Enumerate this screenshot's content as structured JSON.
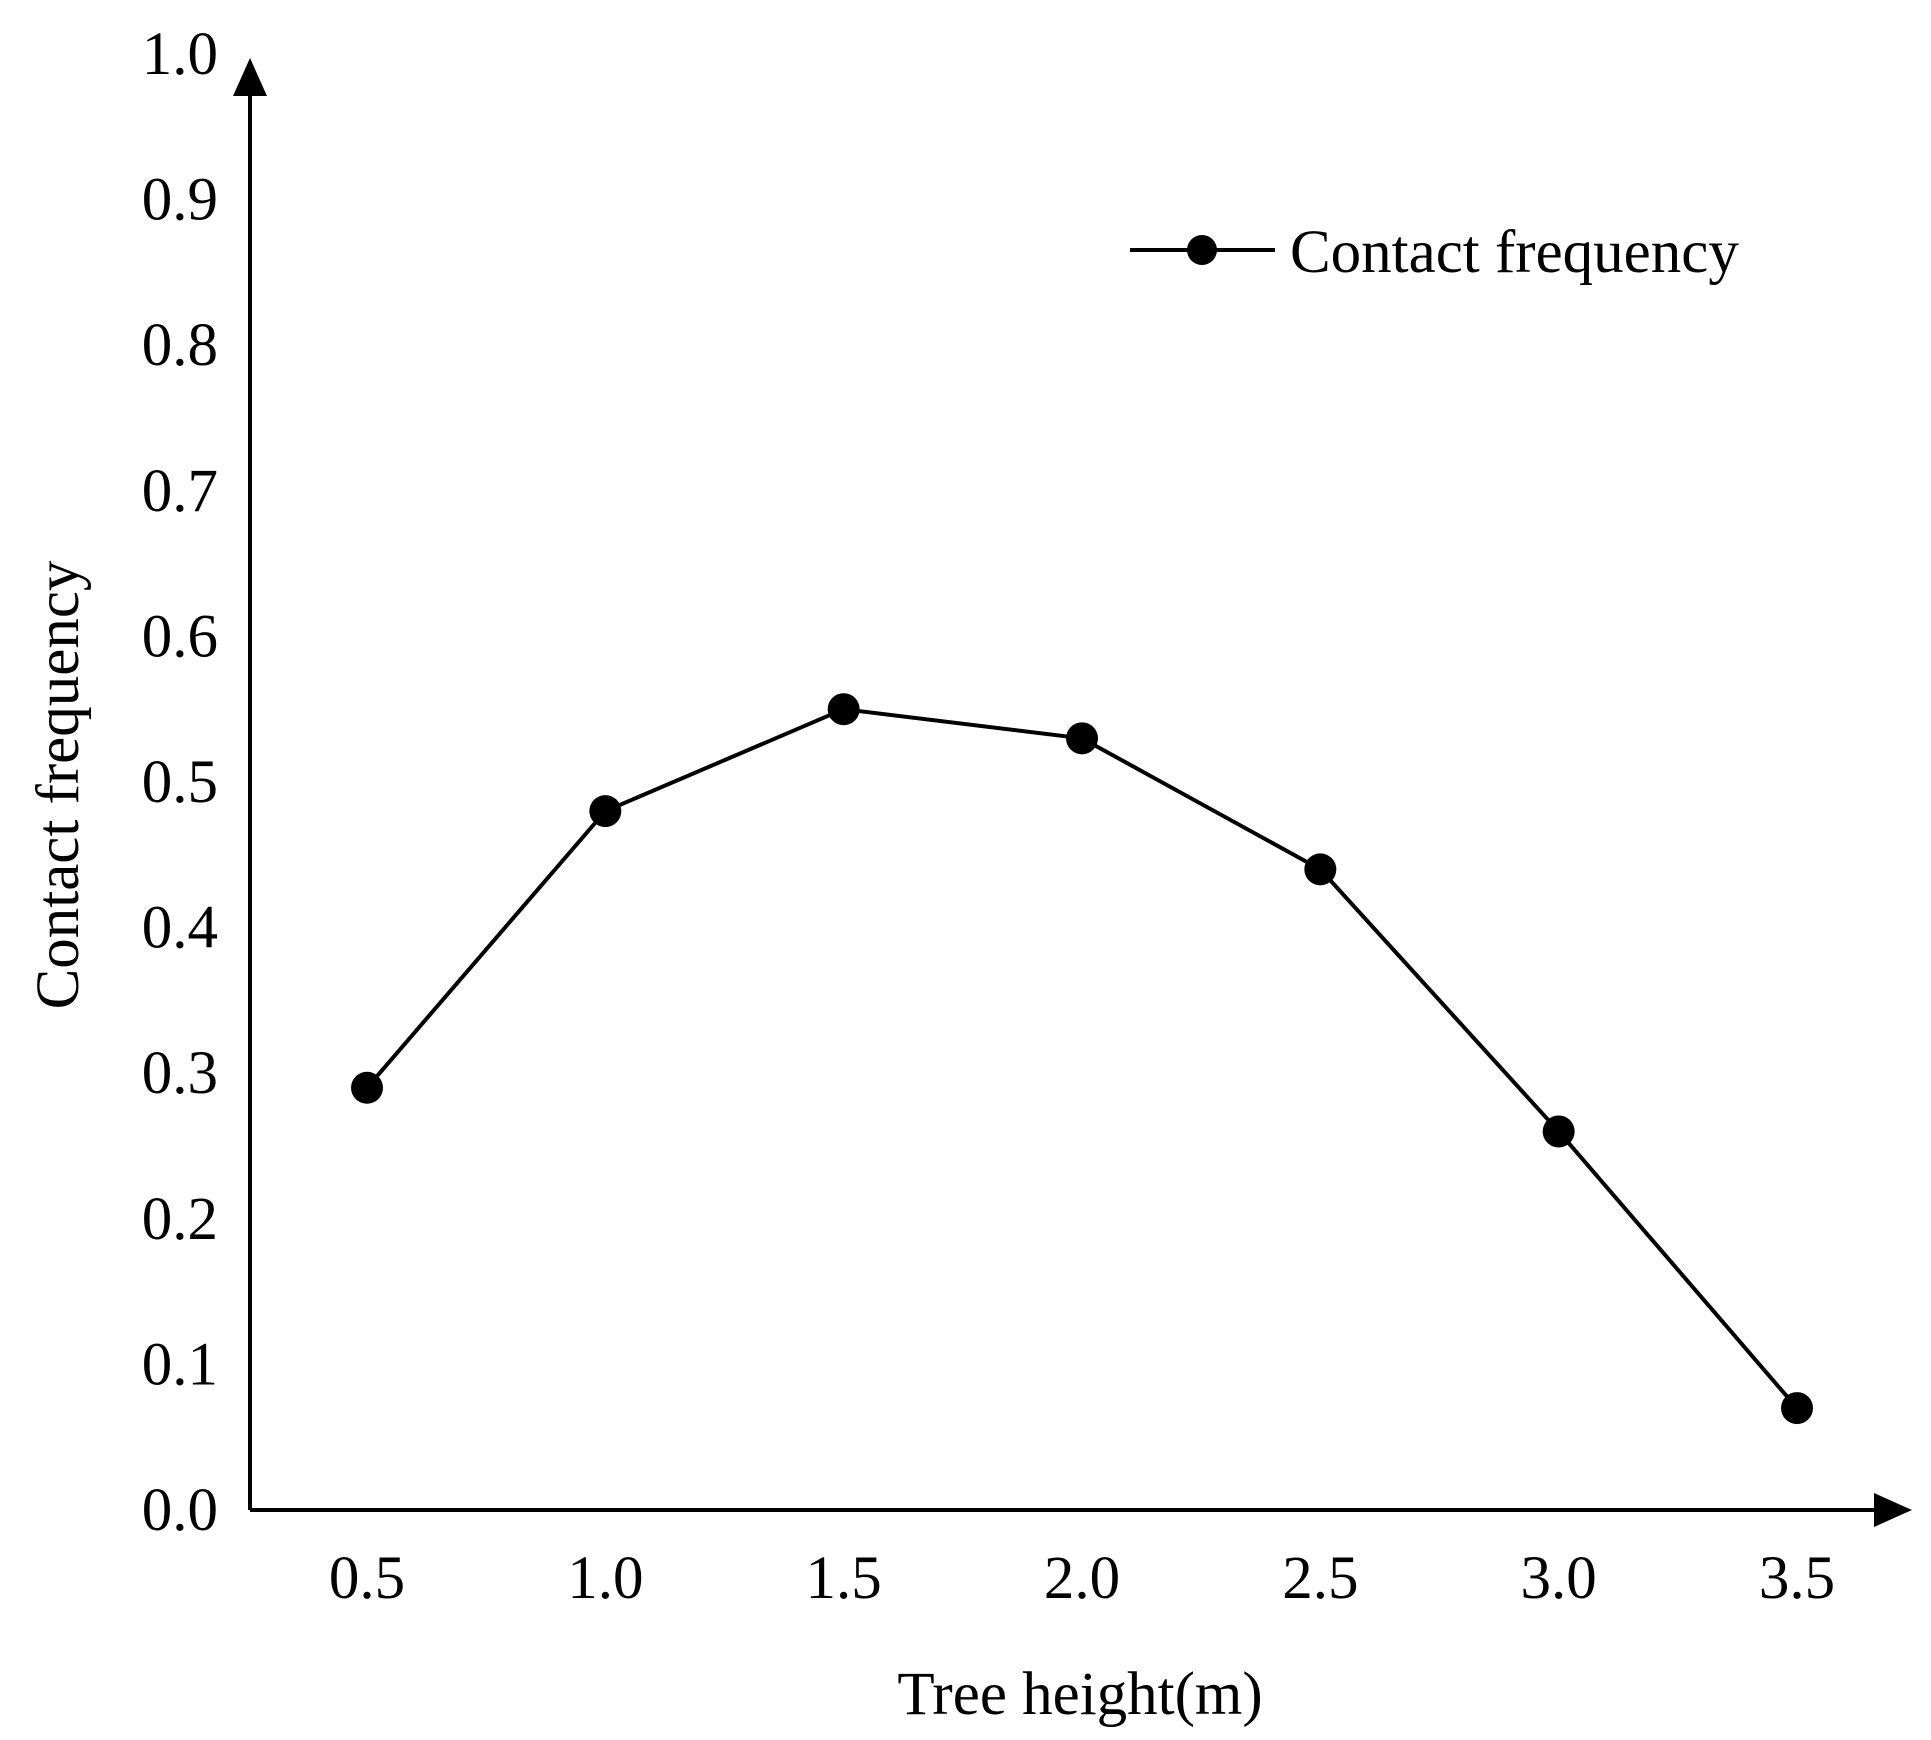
{
  "chart_data": {
    "type": "line",
    "title": "",
    "xlabel": "Tree height(m)",
    "ylabel": "Contact frequency",
    "x": [
      0.5,
      1.0,
      1.5,
      2.0,
      2.5,
      3.0,
      3.5
    ],
    "x_tick_labels": [
      "0.5",
      "1.0",
      "1.5",
      "2.0",
      "2.5",
      "3.0",
      "3.5"
    ],
    "y_tick_labels": [
      "0.0",
      "0.1",
      "0.2",
      "0.3",
      "0.4",
      "0.5",
      "0.6",
      "0.7",
      "0.8",
      "0.9",
      "1.0"
    ],
    "ylim": [
      0,
      1.0
    ],
    "xlim": [
      0.25,
      3.75
    ],
    "grid": false,
    "legend_position": "top-right",
    "series": [
      {
        "name": "Contact frequency",
        "values": [
          0.29,
          0.48,
          0.55,
          0.53,
          0.44,
          0.26,
          0.07
        ],
        "color": "#000000",
        "marker": "circle"
      }
    ]
  }
}
